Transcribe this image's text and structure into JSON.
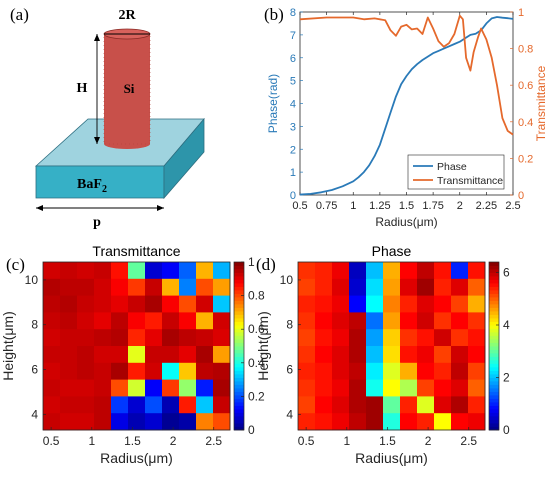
{
  "panels": {
    "a": {
      "label": "(a)",
      "dim_diameter": "2R",
      "dim_height": "H",
      "pillar_material": "Si",
      "substrate_material_base": "BaF",
      "substrate_material_sub": "2",
      "dim_period": "p",
      "colors": {
        "pillar": "#c8504a",
        "substrate_top": "#9fd3df",
        "substrate_side": "#36b0c6"
      }
    },
    "b": {
      "label": "(b)"
    },
    "c": {
      "label": "(c)"
    },
    "d": {
      "label": "(d)"
    }
  },
  "chart_data": [
    {
      "id": "b",
      "type": "line",
      "xlabel": "Radius(μm)",
      "ylabel_left": "Phase(rad)",
      "ylabel_right": "Transmittance",
      "xlim": [
        0.5,
        2.5
      ],
      "ylim_left": [
        0,
        8
      ],
      "ylim_right": [
        0,
        1
      ],
      "x_ticks": [
        0.5,
        0.75,
        1,
        1.25,
        1.5,
        1.75,
        2,
        2.25,
        2.5
      ],
      "x_tick_labels": [
        "0.5",
        "0.75",
        "1",
        "1.25",
        "1.5",
        "1.75",
        "2",
        "2.25",
        "2.5"
      ],
      "y_left_ticks": [
        0,
        1,
        2,
        3,
        4,
        5,
        6,
        7,
        8
      ],
      "y_right_ticks": [
        0,
        0.2,
        0.4,
        0.6,
        0.8,
        1
      ],
      "y_right_tick_labels": [
        "0",
        "0.2",
        "0.4",
        "0.6",
        "0.8",
        "1"
      ],
      "legend_position": "bottom-right",
      "series": [
        {
          "name": "Phase",
          "axis": "left",
          "color": "#2a7ab8",
          "x": [
            0.5,
            0.6,
            0.7,
            0.8,
            0.9,
            1.0,
            1.05,
            1.1,
            1.15,
            1.2,
            1.25,
            1.3,
            1.35,
            1.4,
            1.45,
            1.5,
            1.55,
            1.6,
            1.65,
            1.7,
            1.75,
            1.8,
            1.85,
            1.9,
            1.95,
            2.0,
            2.05,
            2.1,
            2.15,
            2.2,
            2.25,
            2.3,
            2.35,
            2.4,
            2.45,
            2.5
          ],
          "y": [
            0.02,
            0.05,
            0.12,
            0.22,
            0.38,
            0.6,
            0.78,
            1.0,
            1.3,
            1.7,
            2.2,
            2.9,
            3.6,
            4.3,
            4.85,
            5.2,
            5.5,
            5.72,
            5.9,
            6.05,
            6.2,
            6.3,
            6.4,
            6.5,
            6.6,
            6.7,
            6.85,
            7.0,
            7.05,
            7.2,
            7.5,
            7.72,
            7.78,
            7.75,
            7.73,
            7.7
          ]
        },
        {
          "name": "Transmittance",
          "axis": "right",
          "color": "#e5692c",
          "x": [
            0.5,
            0.75,
            1.0,
            1.1,
            1.2,
            1.3,
            1.35,
            1.4,
            1.45,
            1.5,
            1.55,
            1.6,
            1.65,
            1.7,
            1.75,
            1.8,
            1.85,
            1.9,
            1.95,
            2.0,
            2.03,
            2.06,
            2.1,
            2.13,
            2.17,
            2.2,
            2.25,
            2.3,
            2.35,
            2.4,
            2.45,
            2.5
          ],
          "y": [
            0.96,
            0.97,
            0.97,
            0.96,
            0.965,
            0.955,
            0.9,
            0.87,
            0.92,
            0.93,
            0.905,
            0.91,
            0.88,
            0.97,
            0.91,
            0.84,
            0.81,
            0.83,
            0.88,
            0.98,
            0.96,
            0.75,
            0.68,
            0.78,
            0.86,
            0.91,
            0.85,
            0.75,
            0.6,
            0.42,
            0.35,
            0.33
          ]
        }
      ]
    },
    {
      "id": "c",
      "type": "heatmap",
      "title": "Transmittance",
      "xlabel": "Radius(μm)",
      "ylabel": "Height(μm)",
      "xlim": [
        0.4,
        2.7
      ],
      "ylim": [
        3.3,
        10.8
      ],
      "x_ticks": [
        0.5,
        1,
        1.5,
        2,
        2.5
      ],
      "x_tick_labels": [
        "0.5",
        "1",
        "1.5",
        "2",
        "2.5"
      ],
      "y_ticks": [
        4,
        6,
        8,
        10
      ],
      "y_tick_labels": [
        "4",
        "6",
        "8",
        "10"
      ],
      "colorbar_range": [
        0,
        1
      ],
      "colorbar_ticks": [
        0,
        0.2,
        0.4,
        0.6,
        0.8,
        1
      ],
      "colorbar_tick_labels": [
        "0",
        "0.2",
        "0.4",
        "0.6",
        "0.8",
        "1"
      ],
      "colormap": "jet",
      "grid_x": [
        0.5,
        0.7,
        0.9,
        1.1,
        1.3,
        1.5,
        1.7,
        1.9,
        2.1,
        2.3,
        2.5
      ],
      "grid_y": [
        10.5,
        9.75,
        9.0,
        8.25,
        7.5,
        6.75,
        6.0,
        5.25,
        4.5,
        3.75
      ],
      "values": [
        [
          0.92,
          0.93,
          0.92,
          0.93,
          0.86,
          0.47,
          0.08,
          0.12,
          0.22,
          0.7,
          0.3
        ],
        [
          0.95,
          0.94,
          0.94,
          0.92,
          0.88,
          0.82,
          0.93,
          0.7,
          0.25,
          0.8,
          0.72
        ],
        [
          0.94,
          0.95,
          0.93,
          0.92,
          0.9,
          0.93,
          0.96,
          0.88,
          0.8,
          0.92,
          0.32
        ],
        [
          0.93,
          0.94,
          0.92,
          0.9,
          0.94,
          0.88,
          0.85,
          0.93,
          0.88,
          0.7,
          0.92
        ],
        [
          0.92,
          0.93,
          0.93,
          0.94,
          0.95,
          0.84,
          0.9,
          0.96,
          0.94,
          0.93,
          0.91
        ],
        [
          0.93,
          0.93,
          0.94,
          0.92,
          0.92,
          0.6,
          0.93,
          0.93,
          0.9,
          0.96,
          0.72
        ],
        [
          0.92,
          0.93,
          0.94,
          0.93,
          0.96,
          0.85,
          0.92,
          0.38,
          0.68,
          0.94,
          0.95
        ],
        [
          0.93,
          0.92,
          0.92,
          0.93,
          0.8,
          0.58,
          0.12,
          0.82,
          0.52,
          0.15,
          0.96
        ],
        [
          0.92,
          0.93,
          0.93,
          0.94,
          0.18,
          0.08,
          0.2,
          0.05,
          0.85,
          0.32,
          0.93
        ],
        [
          0.93,
          0.92,
          0.92,
          0.94,
          0.1,
          0.05,
          0.08,
          0.02,
          0.04,
          0.75,
          0.8
        ]
      ]
    },
    {
      "id": "d",
      "type": "heatmap",
      "title": "Phase",
      "xlabel": "Radius(μm)",
      "ylabel": "Height(μm)",
      "xlim": [
        0.4,
        2.7
      ],
      "ylim": [
        3.3,
        10.8
      ],
      "x_ticks": [
        0.5,
        1,
        1.5,
        2,
        2.5
      ],
      "x_tick_labels": [
        "0.5",
        "1",
        "1.5",
        "2",
        "2.5"
      ],
      "y_ticks": [
        4,
        6,
        8,
        10
      ],
      "y_tick_labels": [
        "4",
        "6",
        "8",
        "10"
      ],
      "colorbar_range": [
        0,
        6.4
      ],
      "colorbar_ticks": [
        0,
        2,
        4,
        6
      ],
      "colorbar_tick_labels": [
        "0",
        "2",
        "4",
        "6"
      ],
      "colormap": "jet",
      "grid_x": [
        0.5,
        0.7,
        0.9,
        1.1,
        1.3,
        1.5,
        1.7,
        1.9,
        2.1,
        2.3,
        2.5
      ],
      "grid_y": [
        10.5,
        9.75,
        9.0,
        8.25,
        7.5,
        6.75,
        6.0,
        5.25,
        4.5,
        3.75
      ],
      "values": [
        [
          5.3,
          5.4,
          5.7,
          0.4,
          2.0,
          4.5,
          5.6,
          6.0,
          5.5,
          1.0,
          5.5
        ],
        [
          5.2,
          5.4,
          5.8,
          0.5,
          2.2,
          4.6,
          5.8,
          6.2,
          5.4,
          5.8,
          5.0
        ],
        [
          5.4,
          5.5,
          5.7,
          0.8,
          2.4,
          4.8,
          5.4,
          5.8,
          5.6,
          5.2,
          4.5
        ],
        [
          5.3,
          5.6,
          5.8,
          6.0,
          1.5,
          4.6,
          5.6,
          5.9,
          5.3,
          5.6,
          5.3
        ],
        [
          5.2,
          5.5,
          5.7,
          6.1,
          1.8,
          4.3,
          5.3,
          5.5,
          5.9,
          5.3,
          5.5
        ],
        [
          5.3,
          5.6,
          5.8,
          6.1,
          2.0,
          4.2,
          5.5,
          5.7,
          5.2,
          5.9,
          5.6
        ],
        [
          5.4,
          5.5,
          5.8,
          6.0,
          2.3,
          3.8,
          4.5,
          5.6,
          5.4,
          6.0,
          5.2
        ],
        [
          5.3,
          5.5,
          5.7,
          6.1,
          2.5,
          4.0,
          3.5,
          5.2,
          5.6,
          5.8,
          5.0
        ],
        [
          5.2,
          5.6,
          5.8,
          6.1,
          6.2,
          3.0,
          5.4,
          3.8,
          5.8,
          6.1,
          5.4
        ],
        [
          5.4,
          5.5,
          5.7,
          6.0,
          6.2,
          2.6,
          5.6,
          5.4,
          4.0,
          5.6,
          5.7
        ]
      ]
    }
  ]
}
